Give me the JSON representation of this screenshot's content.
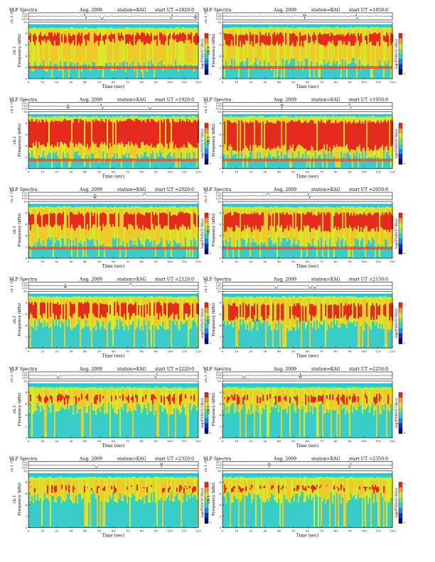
{
  "page": {
    "title": "VLF Spectra",
    "date": "Aug. 2009",
    "station_label": "station=KAG",
    "start_label": "start UT =",
    "xlabel": "Time (sec)",
    "trace_label": "ch.1 (V)",
    "ylabel": "Frequency (kHz)",
    "channel_label": "ch.1",
    "cbar_label": "log(PSD/(V²/Hz))",
    "trace_ticks": [
      "0.10",
      "0.00",
      "-0.10"
    ],
    "freq_ticks": [
      "0",
      "2",
      "4",
      "6",
      "8",
      "10"
    ],
    "time_ticks": [
      "0",
      "10",
      "20",
      "30",
      "40",
      "50",
      "60",
      "70",
      "80",
      "90",
      "100",
      "110",
      "120"
    ],
    "cbar_ticks_top": "-2",
    "cbar_ticks_bottom": "-4"
  },
  "chart_data": [
    {
      "type": "heatmap",
      "panel": "1820",
      "start_ut": "1820:0",
      "red_lo": 5.8,
      "red_hi": 8.2,
      "yel_lo": 1.2,
      "yel_hi": 9.1,
      "density": 0.85,
      "low_band": 2.0,
      "spikes": [
        40,
        52,
        101,
        118
      ]
    },
    {
      "type": "heatmap",
      "panel": "1850",
      "start_ut": "1850:0",
      "red_lo": 5.6,
      "red_hi": 8.2,
      "yel_lo": 1.5,
      "yel_hi": 9.2,
      "density": 0.8,
      "low_band": 2.0,
      "spikes": [
        58,
        95
      ]
    },
    {
      "type": "heatmap",
      "panel": "1920",
      "start_ut": "1920:0",
      "red_lo": 3.5,
      "red_hi": 8.8,
      "yel_lo": 1.0,
      "yel_hi": 9.3,
      "density": 0.9,
      "low_band": 1.5,
      "spikes": [
        28,
        52,
        86
      ]
    },
    {
      "type": "heatmap",
      "panel": "1950",
      "start_ut": "1950:0",
      "red_lo": 3.0,
      "red_hi": 8.6,
      "yel_lo": 1.2,
      "yel_hi": 9.3,
      "density": 0.9,
      "low_band": 1.5,
      "spikes": [
        42,
        90
      ]
    },
    {
      "type": "heatmap",
      "panel": "2020",
      "start_ut": "2020:0",
      "red_lo": 4.8,
      "red_hi": 8.2,
      "yel_lo": 1.6,
      "yel_hi": 9.2,
      "density": 0.85,
      "low_band": 1.8,
      "spikes": [
        47,
        82
      ]
    },
    {
      "type": "heatmap",
      "panel": "2050",
      "start_ut": "2050:0",
      "red_lo": 4.6,
      "red_hi": 8.2,
      "yel_lo": 1.6,
      "yel_hi": 9.2,
      "density": 0.85,
      "low_band": 1.8,
      "spikes": [
        32,
        61
      ]
    },
    {
      "type": "heatmap",
      "panel": "2120",
      "start_ut": "2120:0",
      "red_lo": 5.0,
      "red_hi": 8.2,
      "yel_lo": 3.0,
      "yel_hi": 9.2,
      "density": 0.7,
      "low_band": 0,
      "spikes": [
        26,
        72
      ]
    },
    {
      "type": "heatmap",
      "panel": "2150",
      "start_ut": "2150:0",
      "red_lo": 4.6,
      "red_hi": 8.0,
      "yel_lo": 3.0,
      "yel_hi": 9.2,
      "density": 0.7,
      "low_band": 0,
      "spikes": [
        38,
        62,
        65
      ]
    },
    {
      "type": "heatmap",
      "panel": "2220",
      "start_ut": "2220:0",
      "red_lo": 5.8,
      "red_hi": 7.8,
      "yel_lo": 4.0,
      "yel_hi": 9.0,
      "density": 0.5,
      "low_band": 0,
      "spikes": [
        21,
        90
      ]
    },
    {
      "type": "heatmap",
      "panel": "2250",
      "start_ut": "2250:0",
      "red_lo": 5.8,
      "red_hi": 7.8,
      "yel_lo": 4.0,
      "yel_hi": 9.0,
      "density": 0.5,
      "low_band": 0,
      "spikes": [
        15,
        55
      ]
    },
    {
      "type": "heatmap",
      "panel": "2320",
      "start_ut": "2320:0",
      "red_lo": 6.0,
      "red_hi": 7.6,
      "yel_lo": 4.2,
      "yel_hi": 9.0,
      "density": 0.45,
      "low_band": 0,
      "spikes": [
        48,
        94
      ]
    },
    {
      "type": "heatmap",
      "panel": "2350",
      "start_ut": "2350:0",
      "red_lo": 6.0,
      "red_hi": 7.6,
      "yel_lo": 4.2,
      "yel_hi": 9.0,
      "density": 0.45,
      "low_band": 0,
      "spikes": [
        33,
        90
      ]
    }
  ]
}
